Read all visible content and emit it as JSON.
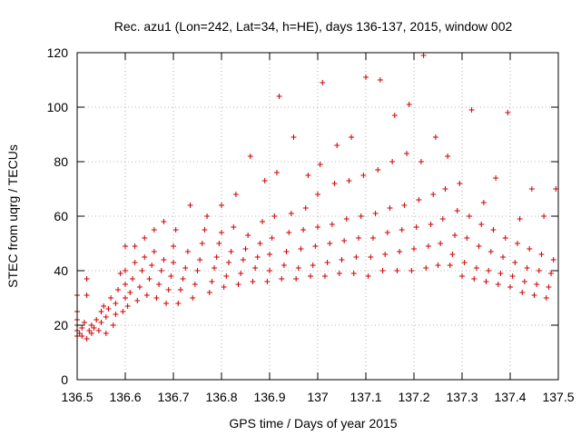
{
  "chart_data": {
    "type": "scatter",
    "title": "Rec. azu1 (Lon=242, Lat=34, h=HE), days 136-137, 2015, window 002",
    "xlabel": "GPS time / Days of year 2015",
    "ylabel": "STEC from uqrg / TECUs",
    "xlim": [
      136.5,
      137.5
    ],
    "ylim": [
      0,
      120
    ],
    "xticks": [
      "136.5",
      "136.6",
      "136.7",
      "136.8",
      "136.9",
      "137",
      "137.1",
      "137.2",
      "137.3",
      "137.4",
      "137.5"
    ],
    "yticks": [
      "0",
      "20",
      "40",
      "60",
      "80",
      "100",
      "120"
    ],
    "grid": true,
    "marker": "plus",
    "marker_color": "#cc0000",
    "series": [
      {
        "points": [
          [
            136.5,
            16
          ],
          [
            136.5,
            18
          ],
          [
            136.5,
            20
          ],
          [
            136.5,
            22
          ],
          [
            136.5,
            25
          ],
          [
            136.5,
            31
          ],
          [
            136.505,
            17
          ],
          [
            136.51,
            16
          ],
          [
            136.51,
            19
          ],
          [
            136.515,
            21
          ],
          [
            136.52,
            37
          ],
          [
            136.52,
            31
          ],
          [
            136.52,
            15
          ],
          [
            136.525,
            18
          ],
          [
            136.53,
            17
          ],
          [
            136.53,
            20
          ],
          [
            136.535,
            19
          ],
          [
            136.54,
            22
          ],
          [
            136.545,
            18
          ],
          [
            136.55,
            21
          ],
          [
            136.55,
            25
          ],
          [
            136.555,
            27
          ],
          [
            136.56,
            17
          ],
          [
            136.56,
            23
          ],
          [
            136.565,
            26
          ],
          [
            136.57,
            30
          ],
          [
            136.575,
            20
          ],
          [
            136.58,
            24
          ],
          [
            136.58,
            28
          ],
          [
            136.585,
            33
          ],
          [
            136.59,
            39
          ],
          [
            136.595,
            25
          ],
          [
            136.6,
            30
          ],
          [
            136.6,
            35
          ],
          [
            136.6,
            40
          ],
          [
            136.6,
            49
          ],
          [
            136.605,
            27
          ],
          [
            136.61,
            32
          ],
          [
            136.615,
            37
          ],
          [
            136.62,
            43
          ],
          [
            136.62,
            49
          ],
          [
            136.625,
            29
          ],
          [
            136.63,
            34
          ],
          [
            136.635,
            40
          ],
          [
            136.64,
            45
          ],
          [
            136.64,
            52
          ],
          [
            136.645,
            31
          ],
          [
            136.65,
            37
          ],
          [
            136.655,
            42
          ],
          [
            136.66,
            47
          ],
          [
            136.66,
            55
          ],
          [
            136.665,
            30
          ],
          [
            136.67,
            35
          ],
          [
            136.675,
            40
          ],
          [
            136.68,
            44
          ],
          [
            136.68,
            58
          ],
          [
            136.685,
            28
          ],
          [
            136.69,
            33
          ],
          [
            136.695,
            38
          ],
          [
            136.7,
            43
          ],
          [
            136.7,
            49
          ],
          [
            136.705,
            55
          ],
          [
            136.71,
            28
          ],
          [
            136.715,
            33
          ],
          [
            136.72,
            37
          ],
          [
            136.725,
            41
          ],
          [
            136.73,
            47
          ],
          [
            136.735,
            64
          ],
          [
            136.74,
            30
          ],
          [
            136.745,
            35
          ],
          [
            136.75,
            40
          ],
          [
            136.755,
            44
          ],
          [
            136.76,
            50
          ],
          [
            136.765,
            55
          ],
          [
            136.77,
            60
          ],
          [
            136.775,
            32
          ],
          [
            136.78,
            36
          ],
          [
            136.785,
            41
          ],
          [
            136.79,
            45
          ],
          [
            136.795,
            50
          ],
          [
            136.8,
            54
          ],
          [
            136.8,
            64
          ],
          [
            136.805,
            34
          ],
          [
            136.81,
            38
          ],
          [
            136.815,
            43
          ],
          [
            136.82,
            47
          ],
          [
            136.825,
            56
          ],
          [
            136.83,
            68
          ],
          [
            136.835,
            35
          ],
          [
            136.84,
            39
          ],
          [
            136.845,
            44
          ],
          [
            136.85,
            48
          ],
          [
            136.855,
            53
          ],
          [
            136.86,
            82
          ],
          [
            136.865,
            36
          ],
          [
            136.87,
            41
          ],
          [
            136.875,
            45
          ],
          [
            136.88,
            50
          ],
          [
            136.885,
            58
          ],
          [
            136.89,
            73
          ],
          [
            136.895,
            36
          ],
          [
            136.9,
            40
          ],
          [
            136.9,
            46
          ],
          [
            136.905,
            52
          ],
          [
            136.91,
            60
          ],
          [
            136.915,
            76
          ],
          [
            136.92,
            104
          ],
          [
            136.925,
            37
          ],
          [
            136.93,
            42
          ],
          [
            136.935,
            47
          ],
          [
            136.94,
            54
          ],
          [
            136.945,
            61
          ],
          [
            136.95,
            89
          ],
          [
            136.955,
            37
          ],
          [
            136.96,
            41
          ],
          [
            136.965,
            48
          ],
          [
            136.97,
            55
          ],
          [
            136.975,
            63
          ],
          [
            136.98,
            75
          ],
          [
            136.985,
            38
          ],
          [
            136.99,
            42
          ],
          [
            136.995,
            49
          ],
          [
            137,
            56
          ],
          [
            137,
            68
          ],
          [
            137.005,
            79
          ],
          [
            137.01,
            109
          ],
          [
            137.015,
            38
          ],
          [
            137.02,
            43
          ],
          [
            137.025,
            50
          ],
          [
            137.03,
            57
          ],
          [
            137.035,
            72
          ],
          [
            137.04,
            86
          ],
          [
            137.045,
            39
          ],
          [
            137.05,
            44
          ],
          [
            137.055,
            51
          ],
          [
            137.06,
            59
          ],
          [
            137.065,
            73
          ],
          [
            137.07,
            89
          ],
          [
            137.075,
            39
          ],
          [
            137.08,
            45
          ],
          [
            137.085,
            52
          ],
          [
            137.09,
            60
          ],
          [
            137.095,
            75
          ],
          [
            137.1,
            111
          ],
          [
            137.105,
            38
          ],
          [
            137.11,
            45
          ],
          [
            137.115,
            52
          ],
          [
            137.12,
            61
          ],
          [
            137.125,
            77
          ],
          [
            137.13,
            110
          ],
          [
            137.135,
            40
          ],
          [
            137.14,
            46
          ],
          [
            137.145,
            54
          ],
          [
            137.15,
            63
          ],
          [
            137.155,
            80
          ],
          [
            137.16,
            97
          ],
          [
            137.165,
            40
          ],
          [
            137.17,
            47
          ],
          [
            137.175,
            55
          ],
          [
            137.18,
            64
          ],
          [
            137.185,
            83
          ],
          [
            137.19,
            101
          ],
          [
            137.195,
            40
          ],
          [
            137.2,
            48
          ],
          [
            137.205,
            56
          ],
          [
            137.21,
            66
          ],
          [
            137.215,
            80
          ],
          [
            137.22,
            119
          ],
          [
            137.225,
            41
          ],
          [
            137.23,
            49
          ],
          [
            137.235,
            57
          ],
          [
            137.24,
            68
          ],
          [
            137.245,
            89
          ],
          [
            137.25,
            42
          ],
          [
            137.255,
            50
          ],
          [
            137.26,
            59
          ],
          [
            137.265,
            70
          ],
          [
            137.27,
            82
          ],
          [
            137.275,
            42
          ],
          [
            137.28,
            46
          ],
          [
            137.285,
            53
          ],
          [
            137.29,
            62
          ],
          [
            137.295,
            72
          ],
          [
            137.3,
            38
          ],
          [
            137.305,
            43
          ],
          [
            137.31,
            52
          ],
          [
            137.315,
            60
          ],
          [
            137.32,
            99
          ],
          [
            137.325,
            37
          ],
          [
            137.33,
            41
          ],
          [
            137.335,
            49
          ],
          [
            137.34,
            57
          ],
          [
            137.345,
            65
          ],
          [
            137.35,
            36
          ],
          [
            137.355,
            40
          ],
          [
            137.36,
            47
          ],
          [
            137.365,
            55
          ],
          [
            137.37,
            74
          ],
          [
            137.375,
            35
          ],
          [
            137.38,
            39
          ],
          [
            137.385,
            45
          ],
          [
            137.39,
            52
          ],
          [
            137.395,
            98
          ],
          [
            137.4,
            34
          ],
          [
            137.405,
            38
          ],
          [
            137.41,
            43
          ],
          [
            137.415,
            50
          ],
          [
            137.42,
            59
          ],
          [
            137.425,
            32
          ],
          [
            137.43,
            36
          ],
          [
            137.435,
            41
          ],
          [
            137.44,
            48
          ],
          [
            137.445,
            70
          ],
          [
            137.45,
            31
          ],
          [
            137.455,
            35
          ],
          [
            137.46,
            40
          ],
          [
            137.465,
            46
          ],
          [
            137.47,
            60
          ],
          [
            137.475,
            30
          ],
          [
            137.48,
            34
          ],
          [
            137.485,
            39
          ],
          [
            137.49,
            44
          ],
          [
            137.495,
            70
          ]
        ]
      }
    ]
  }
}
